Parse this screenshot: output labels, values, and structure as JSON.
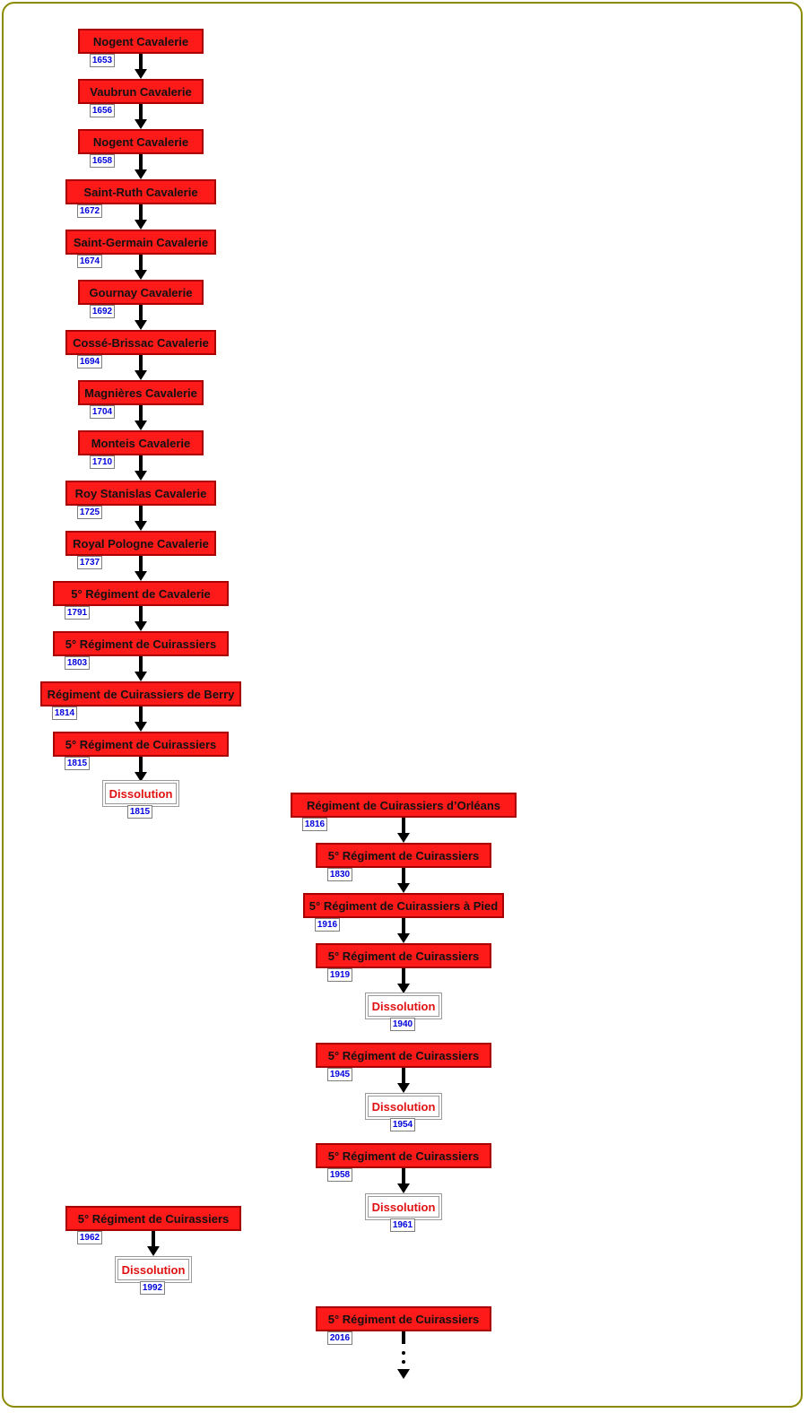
{
  "nodes": [
    {
      "label": "Nogent Cavalerie",
      "year": "1653"
    },
    {
      "label": "Vaubrun Cavalerie",
      "year": "1656"
    },
    {
      "label": "Nogent Cavalerie",
      "year": "1658"
    },
    {
      "label": "Saint-Ruth Cavalerie",
      "year": "1672"
    },
    {
      "label": "Saint-Germain Cavalerie",
      "year": "1674"
    },
    {
      "label": "Gournay Cavalerie",
      "year": "1692"
    },
    {
      "label": "Cossé-Brissac Cavalerie",
      "year": "1694"
    },
    {
      "label": "Magnières Cavalerie",
      "year": "1704"
    },
    {
      "label": "Monteis Cavalerie",
      "year": "1710"
    },
    {
      "label": "Roy Stanislas Cavalerie",
      "year": "1725"
    },
    {
      "label": "Royal Pologne Cavalerie",
      "year": "1737"
    },
    {
      "label": "5° Régiment de Cavalerie",
      "year": "1791"
    },
    {
      "label": "5° Régiment de Cuirassiers",
      "year": "1803"
    },
    {
      "label": "Régiment de Cuirassiers de Berry",
      "year": "1814"
    },
    {
      "label": "5° Régiment de Cuirassiers",
      "year": "1815"
    },
    {
      "label": "Dissolution",
      "year": "1815"
    },
    {
      "label": "Régiment de Cuirassiers d’Orléans",
      "year": "1816"
    },
    {
      "label": "5° Régiment de Cuirassiers",
      "year": "1830"
    },
    {
      "label": "5° Régiment de Cuirassiers à Pied",
      "year": "1916"
    },
    {
      "label": "5° Régiment de Cuirassiers",
      "year": "1919"
    },
    {
      "label": "Dissolution",
      "year": "1940"
    },
    {
      "label": "5° Régiment de Cuirassiers",
      "year": "1945"
    },
    {
      "label": "Dissolution",
      "year": "1954"
    },
    {
      "label": "5° Régiment de Cuirassiers",
      "year": "1958"
    },
    {
      "label": "Dissolution",
      "year": "1961"
    },
    {
      "label": "5° Régiment de Cuirassiers",
      "year": "1962"
    },
    {
      "label": "Dissolution",
      "year": "1992"
    },
    {
      "label": "5° Régiment de Cuirassiers",
      "year": "2016"
    }
  ],
  "colors": {
    "node_fill": "#ff1a1a",
    "node_border": "#a80000",
    "dissolution_text": "#e01010",
    "year_text": "#0000dd",
    "frame_border": "#8a8a00"
  }
}
